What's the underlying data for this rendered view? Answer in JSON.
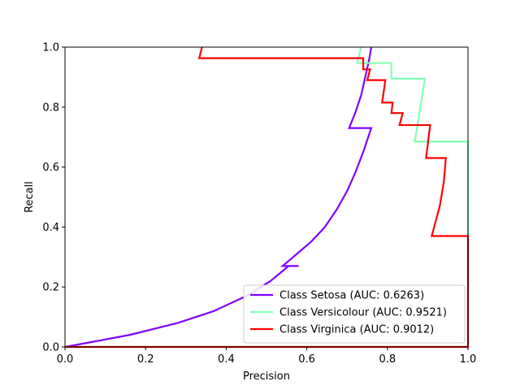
{
  "chart_data": {
    "type": "line",
    "title": "",
    "xlabel": "Precision",
    "ylabel": "Recall",
    "xlim": [
      0,
      1
    ],
    "ylim": [
      0,
      1
    ],
    "xticks": [
      "0.0",
      "0.2",
      "0.4",
      "0.6",
      "0.8",
      "1.0"
    ],
    "yticks": [
      "0.0",
      "0.2",
      "0.4",
      "0.6",
      "0.8",
      "1.0"
    ],
    "grid": false,
    "legend_position": "lower-right",
    "series": [
      {
        "name": "Class Setosa (AUC: 0.6263)",
        "color": "#8000ff",
        "points": [
          [
            0.0,
            0.0
          ],
          [
            0.16,
            0.04
          ],
          [
            0.28,
            0.08
          ],
          [
            0.37,
            0.12
          ],
          [
            0.45,
            0.17
          ],
          [
            0.51,
            0.22
          ],
          [
            0.555,
            0.27
          ],
          [
            0.58,
            0.27
          ],
          [
            0.54,
            0.27
          ],
          [
            0.575,
            0.31
          ],
          [
            0.61,
            0.35
          ],
          [
            0.645,
            0.4
          ],
          [
            0.675,
            0.46
          ],
          [
            0.7,
            0.52
          ],
          [
            0.72,
            0.58
          ],
          [
            0.74,
            0.65
          ],
          [
            0.76,
            0.73
          ],
          [
            0.705,
            0.73
          ],
          [
            0.72,
            0.78
          ],
          [
            0.735,
            0.84
          ],
          [
            0.745,
            0.9
          ],
          [
            0.755,
            0.96
          ],
          [
            0.76,
            1.0
          ]
        ]
      },
      {
        "name": "Class Versicolour (AUC: 0.9521)",
        "color": "#80ffb4",
        "points": [
          [
            0.0,
            0.0
          ],
          [
            1.0,
            0.0
          ],
          [
            1.0,
            0.685
          ],
          [
            0.868,
            0.685
          ],
          [
            0.893,
            0.895
          ],
          [
            0.81,
            0.895
          ],
          [
            0.81,
            0.947
          ],
          [
            0.725,
            0.947
          ],
          [
            0.735,
            1.0
          ]
        ]
      },
      {
        "name": "Class Virginica (AUC: 0.9012)",
        "color": "#ff0000",
        "points": [
          [
            0.0,
            0.0
          ],
          [
            1.0,
            0.0
          ],
          [
            1.0,
            0.37
          ],
          [
            0.91,
            0.37
          ],
          [
            0.93,
            0.47
          ],
          [
            0.94,
            0.55
          ],
          [
            0.945,
            0.63
          ],
          [
            0.896,
            0.63
          ],
          [
            0.906,
            0.74
          ],
          [
            0.83,
            0.74
          ],
          [
            0.838,
            0.78
          ],
          [
            0.81,
            0.78
          ],
          [
            0.813,
            0.815
          ],
          [
            0.787,
            0.815
          ],
          [
            0.795,
            0.89
          ],
          [
            0.75,
            0.89
          ],
          [
            0.757,
            0.926
          ],
          [
            0.74,
            0.926
          ],
          [
            0.74,
            0.963
          ],
          [
            0.333,
            0.963
          ],
          [
            0.34,
            1.0
          ]
        ]
      }
    ]
  }
}
